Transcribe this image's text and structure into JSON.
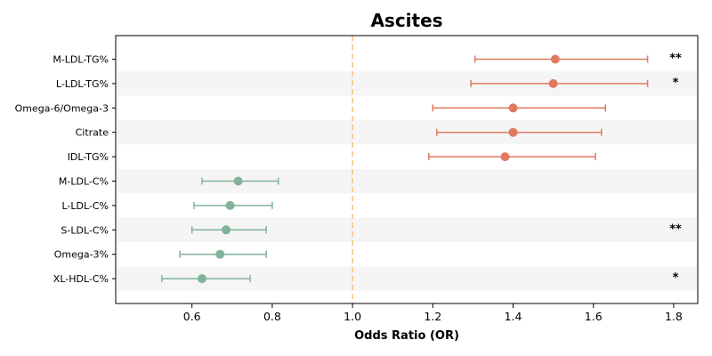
{
  "chart_data": {
    "type": "forest",
    "title": "Ascites",
    "xlabel": "Odds Ratio (OR)",
    "ylabel": "",
    "xlim": [
      0.41,
      1.86
    ],
    "xticks": [
      0.6,
      0.8,
      1.0,
      1.2,
      1.4,
      1.6,
      1.8
    ],
    "xtick_labels": [
      "0.6",
      "0.8",
      "1.0",
      "1.2",
      "1.4",
      "1.6",
      "1.8"
    ],
    "reference_line": 1.0,
    "grid": false,
    "colors": {
      "risk": "#e07a5f",
      "protective": "#81b29a",
      "reference": "#f4c27a",
      "band": "#f5f5f5",
      "axis": "#000000"
    },
    "rows": [
      {
        "label": "M-LDL-TG%",
        "or": 1.505,
        "lower": 1.305,
        "upper": 1.735,
        "sig": "**"
      },
      {
        "label": "L-LDL-TG%",
        "or": 1.5,
        "lower": 1.295,
        "upper": 1.735,
        "sig": "*"
      },
      {
        "label": "Omega-6/Omega-3",
        "or": 1.4,
        "lower": 1.2,
        "upper": 1.63,
        "sig": ""
      },
      {
        "label": "Citrate",
        "or": 1.4,
        "lower": 1.21,
        "upper": 1.62,
        "sig": ""
      },
      {
        "label": "IDL-TG%",
        "or": 1.38,
        "lower": 1.19,
        "upper": 1.605,
        "sig": ""
      },
      {
        "label": "M-LDL-C%",
        "or": 0.715,
        "lower": 0.625,
        "upper": 0.815,
        "sig": ""
      },
      {
        "label": "L-LDL-C%",
        "or": 0.695,
        "lower": 0.605,
        "upper": 0.8,
        "sig": ""
      },
      {
        "label": "S-LDL-C%",
        "or": 0.685,
        "lower": 0.6,
        "upper": 0.785,
        "sig": "**"
      },
      {
        "label": "Omega-3%",
        "or": 0.67,
        "lower": 0.57,
        "upper": 0.785,
        "sig": ""
      },
      {
        "label": "XL-HDL-C%",
        "or": 0.625,
        "lower": 0.525,
        "upper": 0.745,
        "sig": "*"
      }
    ]
  }
}
